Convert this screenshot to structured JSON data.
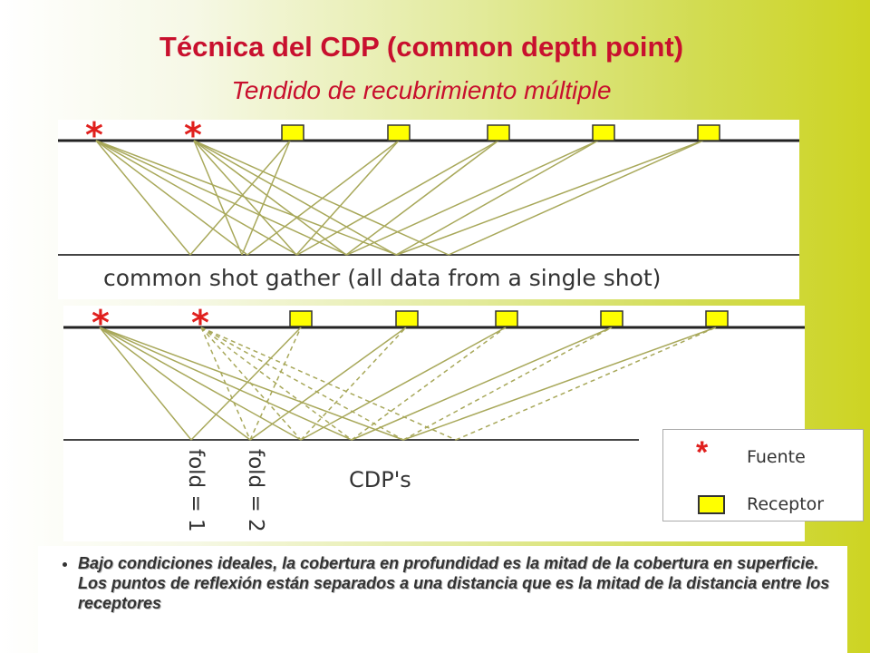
{
  "slide": {
    "title": "Técnica del CDP (common depth point)",
    "subtitle": "Tendido de recubrimiento múltiple"
  },
  "top_diagram": {
    "caption": "common shot gather (all data from a single shot)",
    "source_symbol": "*",
    "source_count": 2,
    "receiver_count": 5
  },
  "bottom_diagram": {
    "fold_labels": [
      "fold = 1",
      "fold = 2"
    ],
    "caption": "CDP's",
    "source_symbol": "*"
  },
  "legend": {
    "source_label": "Fuente",
    "receiver_label": "Receptor",
    "source_symbol": "*"
  },
  "bullet_text": "Bajo condiciones ideales, la cobertura en profundidad es la mitad de la cobertura en superficie. Los puntos de reflexión están separados a una distancia que es la mitad de la distancia entre los receptores",
  "colors": {
    "title": "#c8102e",
    "ray": "#a8a85a",
    "source_star": "#e0201e",
    "receiver_fill": "#ffff00"
  }
}
